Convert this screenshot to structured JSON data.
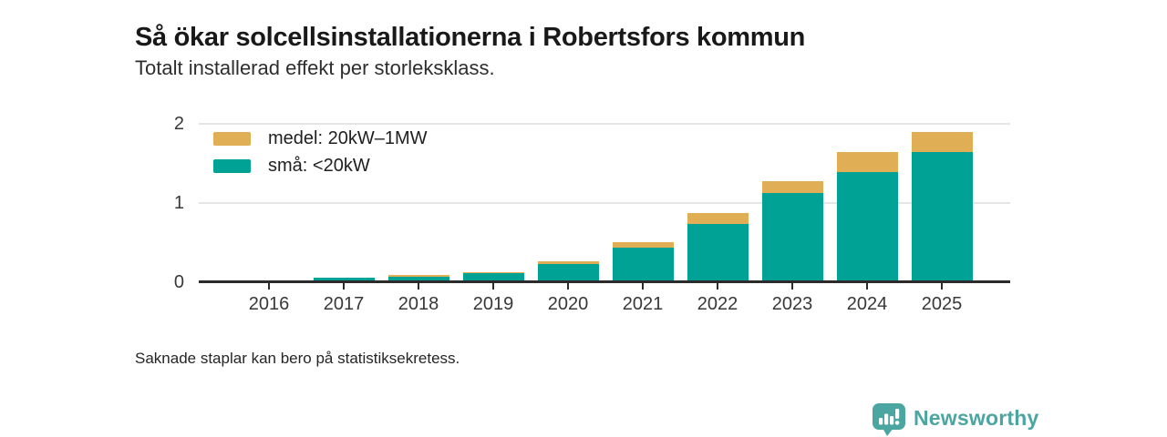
{
  "footnote": "Saknade staplar kan bero på statistiksekretess.",
  "branding": {
    "name": "Newsworthy",
    "icon": "bar-chart-speech-bubble-icon",
    "color": "#4ba5a0"
  },
  "colors": {
    "medel": "#e0ae55",
    "sma": "#00a296",
    "axis": "#2b2b2b",
    "gridline": "#e5e5e5",
    "text": "#1f1f1f"
  },
  "chart_data": {
    "type": "bar",
    "stacked": true,
    "title": "Så ökar solcellsinstallationerna i Robertsfors kommun",
    "subtitle": "Totalt installerad effekt per storleksklass.",
    "categories": [
      "2016",
      "2017",
      "2018",
      "2019",
      "2020",
      "2021",
      "2022",
      "2023",
      "2024",
      "2025"
    ],
    "series": [
      {
        "name": "medel: 20kW–1MW",
        "color": "#e0ae55",
        "values": [
          0,
          0,
          0.02,
          0.02,
          0.03,
          0.07,
          0.13,
          0.15,
          0.25,
          0.26
        ]
      },
      {
        "name": "små: <20kW",
        "color": "#00a296",
        "values": [
          0,
          0.05,
          0.06,
          0.1,
          0.22,
          0.43,
          0.73,
          1.11,
          1.38,
          1.63
        ]
      }
    ],
    "totals": [
      0,
      0.05,
      0.08,
      0.12,
      0.25,
      0.5,
      0.86,
      1.26,
      1.63,
      1.89
    ],
    "ylim": [
      0,
      2
    ],
    "yticks": [
      0,
      1,
      2
    ],
    "grid": "horizontal",
    "legend_position": "top-left-inside",
    "missing_categories": [
      "2016"
    ]
  }
}
